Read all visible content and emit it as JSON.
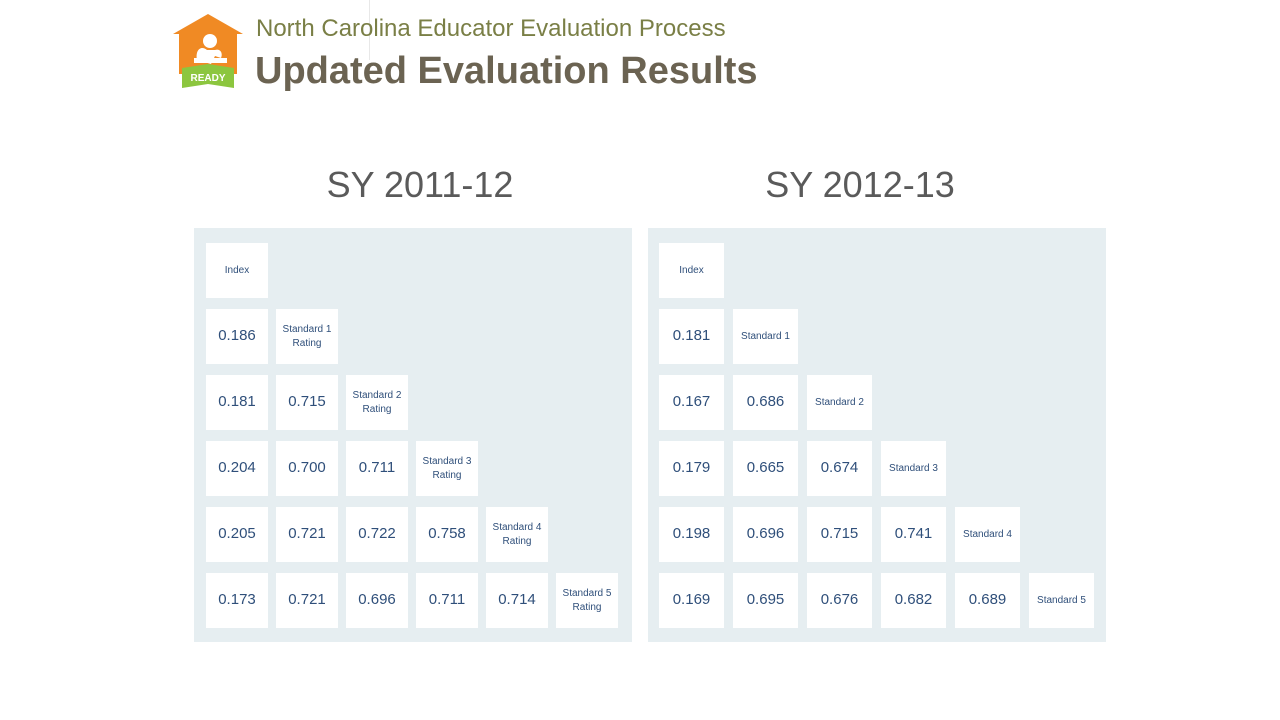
{
  "header": {
    "subtitle": "North Carolina Educator Evaluation Process",
    "title": "Updated Evaluation Results",
    "logo_text": "READY",
    "logo_colors": {
      "house": "#f08a24",
      "banner": "#8cc63f"
    }
  },
  "panels": [
    {
      "year": "SY 2011-12",
      "rows": [
        [
          "Index"
        ],
        [
          "0.186",
          "Standard 1\nRating"
        ],
        [
          "0.181",
          "0.715",
          "Standard 2\nRating"
        ],
        [
          "0.204",
          "0.700",
          "0.711",
          "Standard 3\nRating"
        ],
        [
          "0.205",
          "0.721",
          "0.722",
          "0.758",
          "Standard 4\nRating"
        ],
        [
          "0.173",
          "0.721",
          "0.696",
          "0.711",
          "0.714",
          "Standard 5\nRating"
        ]
      ]
    },
    {
      "year": "SY 2012-13",
      "rows": [
        [
          "Index"
        ],
        [
          "0.181",
          "Standard 1"
        ],
        [
          "0.167",
          "0.686",
          "Standard 2"
        ],
        [
          "0.179",
          "0.665",
          "0.674",
          "Standard 3"
        ],
        [
          "0.198",
          "0.696",
          "0.715",
          "0.741",
          "Standard 4"
        ],
        [
          "0.169",
          "0.695",
          "0.676",
          "0.682",
          "0.689",
          "Standard 5"
        ]
      ]
    }
  ],
  "colors": {
    "panel_bg": "#e6eef1",
    "cell_text": "#2f4f7a",
    "title": "#6b6352",
    "subtitle": "#7a7f46"
  }
}
